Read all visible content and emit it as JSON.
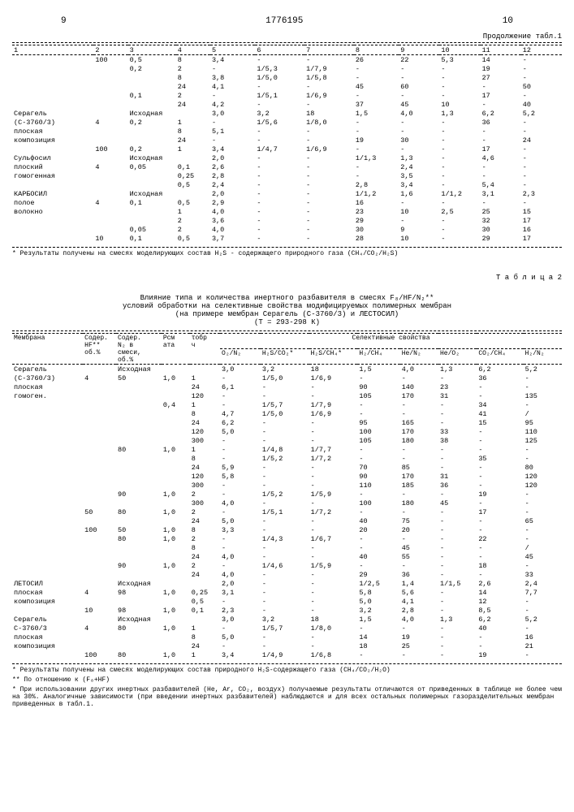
{
  "page_left": "9",
  "patent_no": "1776195",
  "page_right": "10",
  "cont_label": "Продолжение табл.1",
  "t1_cols": [
    "1",
    "2",
    "3",
    "4",
    "5",
    "6",
    "7",
    "8",
    "9",
    "10",
    "11",
    "12"
  ],
  "t1_rows": [
    [
      "",
      "100",
      "0,5",
      "8",
      "3,4",
      "-",
      "-",
      "26",
      "22",
      "5,3",
      "14",
      "-"
    ],
    [
      "",
      "",
      "0,2",
      "2",
      "-",
      "1/5,3",
      "1/7,9",
      "-",
      "-",
      "-",
      "19",
      "-"
    ],
    [
      "",
      "",
      "",
      "8",
      "3,8",
      "1/5,0",
      "1/5,8",
      "-",
      "-",
      "-",
      "27",
      "-"
    ],
    [
      "",
      "",
      "",
      "24",
      "4,1",
      "-",
      "-",
      "45",
      "60",
      "-",
      "-",
      "50"
    ],
    [
      "",
      "",
      "0,1",
      "2",
      "-",
      "1/5,1",
      "1/6,9",
      "-",
      "-",
      "-",
      "17",
      "-"
    ],
    [
      "",
      "",
      "",
      "24",
      "4,2",
      "-",
      "-",
      "37",
      "45",
      "10",
      "-",
      "40"
    ],
    [
      "Серагель",
      "",
      "Исходная",
      "",
      "3,0",
      "3,2",
      "18",
      "1,5",
      "4,0",
      "1,3",
      "6,2",
      "5,2"
    ],
    [
      "(С-3760/3)",
      "4",
      "0,2",
      "1",
      "-",
      "1/5,6",
      "1/8,0",
      "-",
      "-",
      "-",
      "36",
      "-"
    ],
    [
      "плоская",
      "",
      "",
      "8",
      "5,1",
      "-",
      "-",
      "-",
      "-",
      "-",
      "-",
      "-"
    ],
    [
      "композиция",
      "",
      "",
      "24",
      "-",
      "-",
      "-",
      "19",
      "30",
      "-",
      "-",
      "24"
    ],
    [
      "",
      "100",
      "0,2",
      "1",
      "3,4",
      "1/4,7",
      "1/6,9",
      "-",
      "-",
      "-",
      "17",
      "-"
    ],
    [
      "Сульфосил",
      "",
      "Исходная",
      "",
      "2,0",
      "-",
      "-",
      "1/1,3",
      "1,3",
      "-",
      "4,6",
      "-"
    ],
    [
      "плоский",
      "4",
      "0,05",
      "0,1",
      "2,6",
      "-",
      "-",
      "-",
      "2,4",
      "-",
      "-",
      "-"
    ],
    [
      "гомогенная",
      "",
      "",
      "0,25",
      "2,8",
      "-",
      "-",
      "-",
      "3,5",
      "-",
      "-",
      "-"
    ],
    [
      "",
      "",
      "",
      "0,5",
      "2,4",
      "-",
      "-",
      "2,8",
      "3,4",
      "-",
      "5,4",
      "-"
    ],
    [
      "КАРБОСИЛ",
      "",
      "Исходная",
      "",
      "2,0",
      "-",
      "-",
      "1/1,2",
      "1,6",
      "1/1,2",
      "3,1",
      "2,3"
    ],
    [
      "полое",
      "4",
      "0,1",
      "0,5",
      "2,9",
      "-",
      "-",
      "16",
      "-",
      "-",
      "-",
      "-"
    ],
    [
      "волокно",
      "",
      "",
      "1",
      "4,0",
      "-",
      "-",
      "23",
      "10",
      "2,5",
      "25",
      "15"
    ],
    [
      "",
      "",
      "",
      "2",
      "3,6",
      "-",
      "-",
      "29",
      "-",
      "-",
      "32",
      "17"
    ],
    [
      "",
      "",
      "0,05",
      "2",
      "4,0",
      "-",
      "-",
      "30",
      "9",
      "-",
      "30",
      "16"
    ],
    [
      "",
      "10",
      "0,1",
      "0,5",
      "3,7",
      "-",
      "-",
      "28",
      "10",
      "-",
      "29",
      "17"
    ]
  ],
  "t1_foot": "* Результаты получены на смесях моделирующих состав H₂S - содержащего природного газа (CH₄/CO₂/H₂S)",
  "t2_label": "Т а б л и ц а 2",
  "t2_title1": "Влияние типа и количества инертного разбавителя в смесях F₈/HF/N₂**",
  "t2_title2": "условий обработки на селективные свойства модифицируемых полимерных мембран",
  "t2_title3": "(на примере мембран Серагель (С-3760/3) и ЛЕСТОСИЛ)",
  "t2_title4": "(Т = 293-298 К)",
  "t2_h1": [
    "Мембрана",
    "Содер.\nHF**\nоб.%",
    "Содер.\nN₂ в\nсмеси,\nоб.%",
    "Pсм\nата",
    "τобр\nч",
    "Селективные свойства"
  ],
  "t2_sel": [
    "O₂/N₂",
    "H₂S/CO₂*",
    "H₂S/CH₄*",
    "H₂/CH₄",
    "He/N₂",
    "He/O₂",
    "CO₂/CH₄",
    "H₂/N₂"
  ],
  "t2_rows": [
    [
      "Серагель",
      "",
      "Исходная",
      "",
      "",
      "3,0",
      "3,2",
      "18",
      "1,5",
      "4,0",
      "1,3",
      "6,2",
      "5,2"
    ],
    [
      "(С-3760/3)",
      "4",
      "50",
      "1,0",
      "1",
      "-",
      "1/5,0",
      "1/6,9",
      "-",
      "-",
      "-",
      "36",
      "-"
    ],
    [
      "плоская",
      "",
      "",
      "",
      "24",
      "6,1",
      "-",
      "-",
      "90",
      "140",
      "23",
      "-",
      "-"
    ],
    [
      "гомоген.",
      "",
      "",
      "",
      "120",
      "-",
      "-",
      "-",
      "105",
      "170",
      "31",
      "-",
      "135"
    ],
    [
      "",
      "",
      "",
      "0,4",
      "1",
      "-",
      "1/5,7",
      "1/7,9",
      "-",
      "-",
      "-",
      "34",
      "-"
    ],
    [
      "",
      "",
      "",
      "",
      "8",
      "4,7",
      "1/5,0",
      "1/6,9",
      "-",
      "-",
      "-",
      "41",
      "/"
    ],
    [
      "",
      "",
      "",
      "",
      "24",
      "6,2",
      "-",
      "-",
      "95",
      "165",
      "-",
      "15",
      "95"
    ],
    [
      "",
      "",
      "",
      "",
      "120",
      "5,0",
      "-",
      "-",
      "100",
      "170",
      "33",
      "-",
      "110"
    ],
    [
      "",
      "",
      "",
      "",
      "300",
      "-",
      "-",
      "-",
      "105",
      "180",
      "38",
      "-",
      "125"
    ],
    [
      "",
      "",
      "80",
      "1,0",
      "1",
      "-",
      "1/4,8",
      "1/7,7",
      "-",
      "-",
      "-",
      "-",
      "-"
    ],
    [
      "",
      "",
      "",
      "",
      "8",
      "-",
      "1/5,2",
      "1/7,2",
      "-",
      "-",
      "-",
      "35",
      "-"
    ],
    [
      "",
      "",
      "",
      "",
      "24",
      "5,9",
      "-",
      "-",
      "70",
      "85",
      "-",
      "-",
      "80"
    ],
    [
      "",
      "",
      "",
      "",
      "120",
      "5,8",
      "-",
      "-",
      "90",
      "170",
      "31",
      "-",
      "120"
    ],
    [
      "",
      "",
      "",
      "",
      "300",
      "-",
      "-",
      "-",
      "110",
      "185",
      "36",
      "-",
      "120"
    ],
    [
      "",
      "",
      "90",
      "1,0",
      "2",
      "-",
      "1/5,2",
      "1/5,9",
      "-",
      "-",
      "-",
      "19",
      "-"
    ],
    [
      "",
      "",
      "",
      "",
      "300",
      "4,0",
      "-",
      "-",
      "100",
      "180",
      "45",
      "-",
      "-"
    ],
    [
      "",
      "50",
      "80",
      "1,0",
      "2",
      "-",
      "1/5,1",
      "1/7,2",
      "-",
      "-",
      "-",
      "17",
      "-"
    ],
    [
      "",
      "",
      "",
      "",
      "24",
      "5,0",
      "-",
      "-",
      "40",
      "75",
      "-",
      "-",
      "65"
    ],
    [
      "",
      "100",
      "50",
      "1,0",
      "8",
      "3,3",
      "-",
      "-",
      "20",
      "20",
      "-",
      "-",
      "-"
    ],
    [
      "",
      "",
      "80",
      "1,0",
      "2",
      "-",
      "1/4,3",
      "1/6,7",
      "-",
      "-",
      "-",
      "22",
      "-"
    ],
    [
      "",
      "",
      "",
      "",
      "8",
      "-",
      "-",
      "-",
      "-",
      "45",
      "-",
      "-",
      "/"
    ],
    [
      "",
      "",
      "",
      "",
      "24",
      "4,0",
      "-",
      "-",
      "40",
      "55",
      "-",
      "-",
      "45"
    ],
    [
      "",
      "",
      "90",
      "1,0",
      "2",
      "-",
      "1/4,6",
      "1/5,9",
      "-",
      "-",
      "-",
      "18",
      "-"
    ],
    [
      "",
      "",
      "",
      "",
      "24",
      "4,0",
      "-",
      "-",
      "29",
      "36",
      "-",
      "-",
      "33"
    ],
    [
      "ЛЕТОСИЛ",
      "",
      "Исходная",
      "",
      "",
      "2,0",
      "-",
      "-",
      "1/2,5",
      "1,4",
      "1/1,5",
      "2,6",
      "2,4"
    ],
    [
      "плоская",
      "4",
      "98",
      "1,0",
      "0,25",
      "3,1",
      "-",
      "-",
      "5,8",
      "5,6",
      "-",
      "14",
      "7,7"
    ],
    [
      "композиция",
      "",
      "",
      "",
      "0,5",
      "-",
      "-",
      "-",
      "5,0",
      "4,1",
      "-",
      "12",
      "-"
    ],
    [
      "",
      "10",
      "98",
      "1,0",
      "0,1",
      "2,3",
      "-",
      "-",
      "3,2",
      "2,8",
      "-",
      "8,5",
      "-"
    ],
    [
      "Серагель",
      "",
      "Исходная",
      "",
      "",
      "3,0",
      "3,2",
      "18",
      "1,5",
      "4,0",
      "1,3",
      "6,2",
      "5,2"
    ],
    [
      "С-3760/3",
      "4",
      "80",
      "1,0",
      "1",
      "-",
      "1/5,7",
      "1/8,0",
      "-",
      "-",
      "-",
      "40",
      "-"
    ],
    [
      "плоская",
      "",
      "",
      "",
      "8",
      "5,0",
      "-",
      "-",
      "14",
      "19",
      "-",
      "-",
      "16"
    ],
    [
      "композиция",
      "",
      "",
      "",
      "24",
      "-",
      "-",
      "-",
      "18",
      "25",
      "-",
      "-",
      "21"
    ],
    [
      "",
      "100",
      "80",
      "1,0",
      "1",
      "3,4",
      "1/4,9",
      "1/6,8",
      "-",
      "-",
      "-",
      "19",
      "-"
    ]
  ],
  "t2_foot1": "* Результаты получены на смесях моделирующих состав природного H₂S-содержащего газа (CH₄/CO₂/H₂O)",
  "t2_foot2": "** По отношению к (F₈+HF)",
  "t2_foot3": "* При использовании других инертных разбавителей (He, Ar, CO₂, воздух) получаемые результаты отличаются от приведенных в таблице не более чем на 30%. Аналогичные зависимости (при введении инертных разбавителей) наблюдаются и для всех остальных полимерных газоразделительных мембран приведенных в табл.1."
}
